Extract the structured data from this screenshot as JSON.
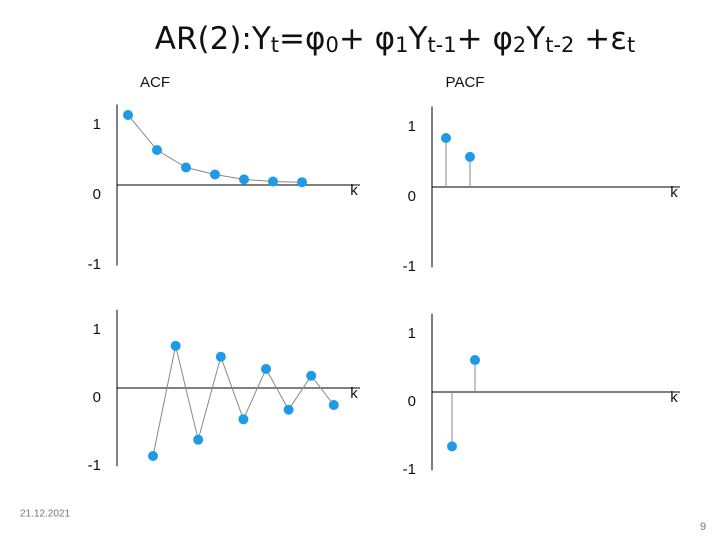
{
  "slide": {
    "title": [
      {
        "text": "AR(2):Y",
        "sub": false
      },
      {
        "text": "t",
        "sub": true
      },
      {
        "text": "=φ",
        "sub": false
      },
      {
        "text": "0",
        "sub": true
      },
      {
        "text": "+ φ",
        "sub": false
      },
      {
        "text": "1",
        "sub": true
      },
      {
        "text": "Y",
        "sub": false
      },
      {
        "text": "t-1",
        "sub": true
      },
      {
        "text": "+ φ",
        "sub": false
      },
      {
        "text": "2",
        "sub": true
      },
      {
        "text": "Y",
        "sub": false
      },
      {
        "text": "t-2",
        "sub": true
      },
      {
        "text": " +ε",
        "sub": false
      },
      {
        "text": "t",
        "sub": true
      }
    ],
    "date": "21.12.2021",
    "page_number": "9"
  },
  "chart_data": [
    {
      "type": "line",
      "title": "ACF",
      "xlabel": "k",
      "values": [
        1,
        0.5,
        0.25,
        0.15,
        0.08,
        0.05,
        0.04
      ],
      "color": "#1e9be6",
      "ylim": [
        -1.15,
        1.15
      ],
      "yticks": [
        -1,
        0,
        1
      ]
    },
    {
      "type": "stem",
      "title": "PACF",
      "xlabel": "k",
      "values": [
        0.7,
        0.43
      ],
      "color": "#1e9be6",
      "ylim": [
        -1.15,
        1.15
      ],
      "yticks": [
        -1,
        0,
        1
      ]
    },
    {
      "type": "line",
      "xlabel": "k",
      "values": [
        -1.0,
        0.62,
        -0.76,
        0.46,
        -0.46,
        0.28,
        -0.32,
        0.18,
        -0.25
      ],
      "color": "#1e9be6",
      "ylim": [
        -1.15,
        1.15
      ],
      "yticks": [
        -1,
        0,
        1
      ]
    },
    {
      "type": "stem",
      "xlabel": "k",
      "values": [
        -0.8,
        0.47
      ],
      "color": "#1e9be6",
      "ylim": [
        -1.15,
        1.15
      ],
      "yticks": [
        -1,
        0,
        1
      ]
    }
  ]
}
